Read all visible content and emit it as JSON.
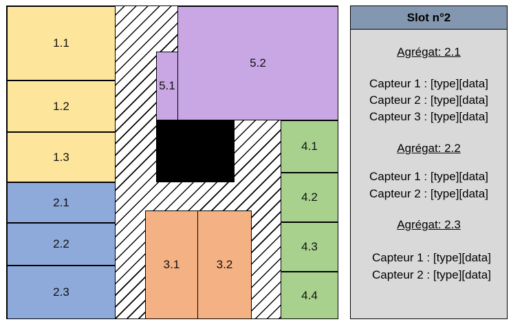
{
  "zones": {
    "z11": "1.1",
    "z12": "1.2",
    "z13": "1.3",
    "z21": "2.1",
    "z22": "2.2",
    "z23": "2.3",
    "z31": "3.1",
    "z32": "3.2",
    "z41": "4.1",
    "z42": "4.2",
    "z43": "4.3",
    "z44": "4.4",
    "z51": "5.1",
    "z52": "5.2"
  },
  "colors": {
    "yellow": "#fde59c",
    "blue": "#8eaadb",
    "green": "#a9d18e",
    "orange": "#f4b183",
    "purple": "#c9a6e4",
    "slot_header": "#8497b0",
    "slot_body": "#d9d9d9"
  },
  "slot": {
    "title": "Slot n°2",
    "aggregates": [
      {
        "title": "Agrégat: 2.1",
        "sensors": [
          "Capteur 1 : [type][data]",
          "Capteur 2 : [type][data]",
          "Capteur 3 : [type][data]"
        ]
      },
      {
        "title": "Agrégat: 2.2",
        "sensors": [
          "Capteur 1 : [type][data]",
          "Capteur 2 : [type][data]"
        ]
      },
      {
        "title": "Agrégat: 2.3",
        "sensors": [
          "Capteur 1 : [type][data]",
          "Capteur 2 : [type][data]"
        ]
      }
    ]
  }
}
